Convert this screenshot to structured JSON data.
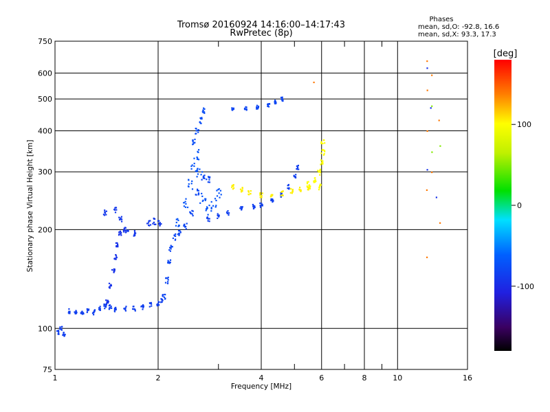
{
  "chart_data": {
    "type": "scatter",
    "title": "Tromsø 20160924 14:16:00–14:17:43",
    "subtitle": "RwPretec (8p)",
    "xlabel": "Frequency [MHz]",
    "ylabel": "Stationary phase Virtual Height [km]",
    "x_scale": "log",
    "y_scale": "log",
    "xlim": [
      1,
      16
    ],
    "ylim": [
      75,
      750
    ],
    "x_ticks": [
      1,
      2,
      4,
      6,
      8,
      10,
      16
    ],
    "x_tick_labels": [
      "1",
      "2",
      "4",
      "6",
      "8",
      "10",
      "16"
    ],
    "x_minor": [
      3,
      5,
      7,
      9
    ],
    "y_ticks": [
      75,
      100,
      200,
      300,
      400,
      500,
      600,
      750
    ],
    "y_tick_labels": [
      "75",
      "100",
      "200",
      "300",
      "400",
      "500",
      "600",
      "750"
    ],
    "grid": true,
    "stats": {
      "heading": "Phases",
      "line_o": "mean, sd,O: -92.8, 16.6",
      "line_x": "mean, sd,X:  93.3, 17.3"
    },
    "colorbar": {
      "unit": "[deg]",
      "range": [
        -180,
        180
      ],
      "ticks": [
        100,
        0,
        -100
      ],
      "tick_labels": [
        "100",
        "0",
        "-100"
      ]
    },
    "traces": [
      {
        "name": "",
        "phase": -85,
        "jitter": 0.015,
        "points": [
          [
            1.02,
            97
          ],
          [
            1.04,
            100
          ],
          [
            1.06,
            96
          ],
          [
            1.1,
            113
          ],
          [
            1.15,
            112
          ],
          [
            1.2,
            111
          ],
          [
            1.25,
            113
          ],
          [
            1.3,
            112
          ],
          [
            1.35,
            115
          ],
          [
            1.4,
            117
          ],
          [
            1.45,
            116
          ],
          [
            1.5,
            114
          ],
          [
            1.6,
            115
          ],
          [
            1.7,
            115
          ],
          [
            1.8,
            116
          ],
          [
            1.9,
            118
          ],
          [
            2.0,
            119
          ],
          [
            2.05,
            122
          ]
        ]
      },
      {
        "name": "",
        "phase": -95,
        "jitter": 0.015,
        "points": [
          [
            1.42,
            120
          ],
          [
            1.45,
            135
          ],
          [
            1.48,
            150
          ],
          [
            1.5,
            165
          ],
          [
            1.52,
            180
          ],
          [
            1.55,
            195
          ],
          [
            1.6,
            200
          ]
        ]
      },
      {
        "name": "",
        "phase": -90,
        "jitter": 0.018,
        "points": [
          [
            1.4,
            225
          ],
          [
            1.5,
            230
          ],
          [
            1.55,
            215
          ],
          [
            1.62,
            200
          ],
          [
            1.7,
            195
          ]
        ]
      },
      {
        "name": "",
        "phase": -90,
        "jitter": 0.02,
        "points": [
          [
            1.88,
            210
          ],
          [
            1.95,
            212
          ],
          [
            2.02,
            210
          ]
        ]
      },
      {
        "name": "",
        "phase": -80,
        "jitter": 0.02,
        "points": [
          [
            2.08,
            125
          ],
          [
            2.12,
            140
          ],
          [
            2.15,
            160
          ],
          [
            2.18,
            175
          ],
          [
            2.22,
            190
          ],
          [
            2.3,
            195
          ],
          [
            2.4,
            205
          ],
          [
            2.5,
            225
          ],
          [
            2.6,
            260
          ],
          [
            2.7,
            290
          ],
          [
            2.8,
            285
          ]
        ]
      },
      {
        "name": "",
        "phase": -70,
        "jitter": 0.035,
        "points": [
          [
            2.3,
            210
          ],
          [
            2.4,
            240
          ],
          [
            2.5,
            275
          ],
          [
            2.55,
            310
          ],
          [
            2.6,
            340
          ],
          [
            2.65,
            300
          ],
          [
            2.7,
            250
          ],
          [
            2.8,
            230
          ],
          [
            2.9,
            240
          ],
          [
            3.0,
            260
          ]
        ]
      },
      {
        "name": "",
        "phase": -75,
        "jitter": 0.02,
        "points": [
          [
            2.55,
            370
          ],
          [
            2.6,
            400
          ],
          [
            2.65,
            430
          ],
          [
            2.7,
            460
          ]
        ]
      },
      {
        "name": "",
        "phase": -85,
        "jitter": 0.015,
        "points": [
          [
            2.8,
            215
          ],
          [
            3.0,
            220
          ],
          [
            3.2,
            225
          ],
          [
            3.5,
            232
          ],
          [
            3.8,
            235
          ],
          [
            4.0,
            238
          ],
          [
            4.3,
            245
          ],
          [
            4.6,
            255
          ],
          [
            4.8,
            270
          ],
          [
            5.0,
            290
          ],
          [
            5.1,
            310
          ]
        ]
      },
      {
        "name": "",
        "phase": -80,
        "jitter": 0.012,
        "points": [
          [
            3.3,
            465
          ],
          [
            3.6,
            468
          ],
          [
            3.9,
            472
          ],
          [
            4.2,
            480
          ],
          [
            4.4,
            490
          ],
          [
            4.6,
            500
          ]
        ]
      },
      {
        "name": "",
        "phase": 105,
        "jitter": 0.015,
        "points": [
          [
            3.3,
            270
          ],
          [
            3.5,
            265
          ],
          [
            3.7,
            260
          ],
          [
            4.0,
            255
          ],
          [
            4.3,
            255
          ],
          [
            4.6,
            258
          ],
          [
            4.9,
            262
          ],
          [
            5.2,
            265
          ],
          [
            5.5,
            268
          ]
        ]
      },
      {
        "name": "",
        "phase": 100,
        "jitter": 0.02,
        "points": [
          [
            5.5,
            275
          ],
          [
            5.7,
            285
          ],
          [
            5.9,
            300
          ],
          [
            6.0,
            320
          ],
          [
            6.05,
            345
          ],
          [
            6.05,
            370
          ],
          [
            5.9,
            270
          ]
        ]
      },
      {
        "name": "",
        "phase": -95,
        "jitter": 0.004,
        "points": [
          [
            12.2,
            305
          ],
          [
            12.2,
            620
          ],
          [
            12.5,
            470
          ],
          [
            13.0,
            250
          ]
        ]
      },
      {
        "name": "",
        "phase": 140,
        "jitter": 0.004,
        "points": [
          [
            12.2,
            650
          ],
          [
            12.2,
            530
          ],
          [
            12.2,
            400
          ],
          [
            12.2,
            265
          ],
          [
            12.2,
            165
          ],
          [
            12.6,
            590
          ],
          [
            12.6,
            300
          ],
          [
            13.2,
            430
          ],
          [
            13.3,
            210
          ],
          [
            5.7,
            560
          ]
        ]
      },
      {
        "name": "",
        "phase": 50,
        "jitter": 0.004,
        "points": [
          [
            12.6,
            475
          ],
          [
            12.6,
            345
          ],
          [
            13.3,
            360
          ]
        ]
      }
    ]
  }
}
